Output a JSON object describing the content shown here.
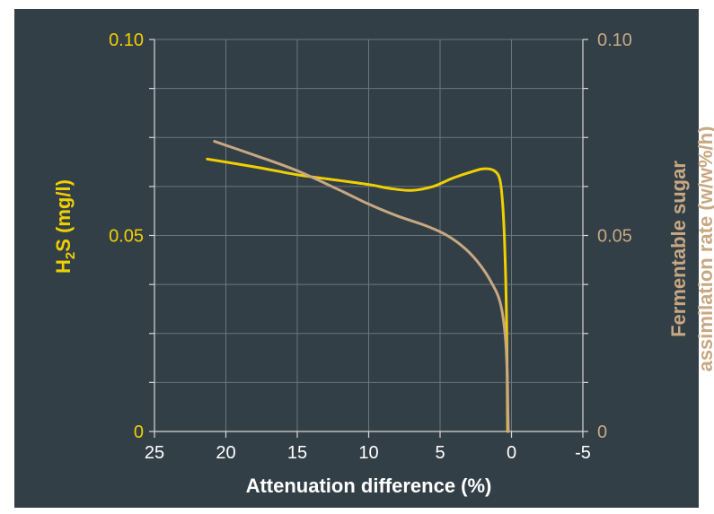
{
  "chart_data": {
    "type": "line",
    "title": "",
    "xlabel": "Attenuation difference (%)",
    "ylabel": {
      "main": "H",
      "sub": "2",
      "rest": "S (mg/l)"
    },
    "y2label": {
      "line1": "Fermentable sugar",
      "line2": "assimilation rate (w/w%/h)"
    },
    "xlim": [
      25,
      -5
    ],
    "ylim": [
      0,
      0.1
    ],
    "y2lim": [
      0,
      0.1
    ],
    "x_ticks": [
      "25",
      "20",
      "15",
      "10",
      "5",
      "0",
      "-5"
    ],
    "x_tick_values": [
      25,
      20,
      15,
      10,
      5,
      0,
      -5
    ],
    "y_ticks": [
      "0",
      "0.05",
      "0.10"
    ],
    "y_tick_values": [
      0,
      0.05,
      0.1
    ],
    "y2_ticks": [
      "0",
      "0.05",
      "0.10"
    ],
    "y2_tick_values": [
      0,
      0.05,
      0.1
    ],
    "grid": true,
    "colors": {
      "h2s": "#f0d000",
      "sugar": "#c8a882",
      "grid": "#6b767d",
      "axis": "#d8d8d8",
      "background": "#333f47",
      "xtext": "#ffffff"
    },
    "series": [
      {
        "key": "h2s",
        "axis": "left",
        "x": [
          21.3,
          18,
          15,
          12,
          10,
          8.5,
          7,
          5.5,
          4.2,
          3,
          2,
          1.2,
          0.8,
          0.6,
          0.45,
          0.35,
          0.3,
          0.28,
          0.27
        ],
        "y": [
          0.0695,
          0.0675,
          0.0655,
          0.064,
          0.063,
          0.062,
          0.0615,
          0.0625,
          0.0645,
          0.066,
          0.067,
          0.0665,
          0.064,
          0.057,
          0.045,
          0.03,
          0.015,
          0.005,
          0
        ]
      },
      {
        "key": "sugar",
        "axis": "right",
        "x": [
          20.8,
          18,
          15,
          12,
          10,
          8,
          6,
          4.5,
          3.2,
          2.2,
          1.4,
          0.8,
          0.45,
          0.3,
          0.25,
          0.22
        ],
        "y": [
          0.074,
          0.0705,
          0.0665,
          0.0615,
          0.058,
          0.055,
          0.0525,
          0.05,
          0.0465,
          0.0425,
          0.038,
          0.033,
          0.025,
          0.015,
          0.006,
          0
        ]
      }
    ]
  }
}
